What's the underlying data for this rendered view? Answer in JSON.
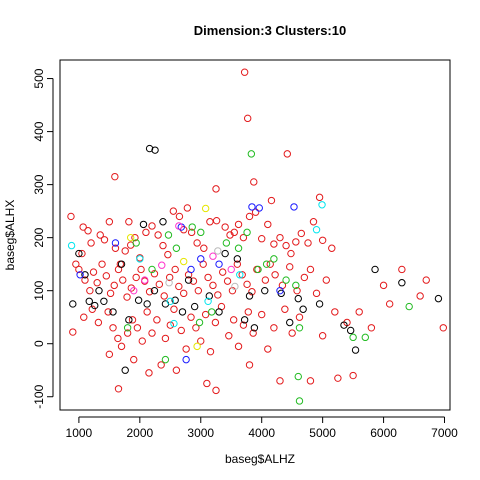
{
  "chart_data": {
    "type": "scatter",
    "title": "Dimension:3 Clusters:10",
    "xlabel": "baseg$ALHZ",
    "ylabel": "baseg$ALHX",
    "xlim": [
      690,
      7090
    ],
    "ylim": [
      -125,
      535
    ],
    "xticks": [
      1000,
      2000,
      3000,
      4000,
      5000,
      6000,
      7000
    ],
    "xtick_labels": [
      "1000",
      "2000",
      "3000",
      "4000",
      "5000",
      "6000",
      "7000"
    ],
    "yticks": [
      -100,
      0,
      100,
      200,
      300,
      400,
      500
    ],
    "ytick_labels": [
      "-100",
      "0",
      "100",
      "200",
      "300",
      "400",
      "500"
    ],
    "grid": false,
    "legend": "none",
    "marker": "open-circle",
    "series": [
      {
        "color": "#e31a1c",
        "points": [
          [
            3720,
            512
          ],
          [
            1590,
            315
          ],
          [
            3770,
            425
          ],
          [
            4420,
            358
          ],
          [
            3250,
            292
          ],
          [
            3870,
            305
          ],
          [
            4950,
            276
          ],
          [
            4160,
            270
          ],
          [
            2780,
            256
          ],
          [
            1820,
            230
          ],
          [
            870,
            240
          ],
          [
            1070,
            220
          ],
          [
            1150,
            213
          ],
          [
            1200,
            190
          ],
          [
            1350,
            205
          ],
          [
            1420,
            196
          ],
          [
            1500,
            230
          ],
          [
            1600,
            180
          ],
          [
            1680,
            150
          ],
          [
            1760,
            175
          ],
          [
            1850,
            186
          ],
          [
            1920,
            200
          ],
          [
            2000,
            162
          ],
          [
            2100,
            210
          ],
          [
            2200,
            222
          ],
          [
            2300,
            205
          ],
          [
            2380,
            185
          ],
          [
            2460,
            168
          ],
          [
            2550,
            250
          ],
          [
            2650,
            240
          ],
          [
            2720,
            215
          ],
          [
            2850,
            210
          ],
          [
            2940,
            190
          ],
          [
            3050,
            180
          ],
          [
            3150,
            230
          ],
          [
            3260,
            232
          ],
          [
            3400,
            220
          ],
          [
            3480,
            205
          ],
          [
            3550,
            210
          ],
          [
            3620,
            225
          ],
          [
            3700,
            200
          ],
          [
            3800,
            240
          ],
          [
            3900,
            248
          ],
          [
            4000,
            198
          ],
          [
            4100,
            225
          ],
          [
            4200,
            188
          ],
          [
            4300,
            200
          ],
          [
            4400,
            185
          ],
          [
            4480,
            170
          ],
          [
            4560,
            192
          ],
          [
            4650,
            208
          ],
          [
            4760,
            190
          ],
          [
            4850,
            230
          ],
          [
            5000,
            195
          ],
          [
            5150,
            180
          ],
          [
            950,
            150
          ],
          [
            1000,
            140
          ],
          [
            1050,
            170
          ],
          [
            1100,
            120
          ],
          [
            1180,
            100
          ],
          [
            1240,
            135
          ],
          [
            1300,
            115
          ],
          [
            1380,
            150
          ],
          [
            1450,
            128
          ],
          [
            1520,
            95
          ],
          [
            1580,
            110
          ],
          [
            1650,
            140
          ],
          [
            1720,
            120
          ],
          [
            1790,
            88
          ],
          [
            1860,
            105
          ],
          [
            1940,
            125
          ],
          [
            2020,
            140
          ],
          [
            2080,
            118
          ],
          [
            2160,
            98
          ],
          [
            2240,
            132
          ],
          [
            2320,
            112
          ],
          [
            2400,
            90
          ],
          [
            2490,
            125
          ],
          [
            2580,
            140
          ],
          [
            2640,
            108
          ],
          [
            2720,
            95
          ],
          [
            2800,
            130
          ],
          [
            2880,
            118
          ],
          [
            2960,
            100
          ],
          [
            3040,
            150
          ],
          [
            3120,
            125
          ],
          [
            3200,
            110
          ],
          [
            3280,
            92
          ],
          [
            3360,
            135
          ],
          [
            3440,
            118
          ],
          [
            3520,
            100
          ],
          [
            3600,
            150
          ],
          [
            3680,
            130
          ],
          [
            3760,
            112
          ],
          [
            3840,
            98
          ],
          [
            3920,
            140
          ],
          [
            4060,
            120
          ],
          [
            4140,
            150
          ],
          [
            4220,
            130
          ],
          [
            4340,
            110
          ],
          [
            4460,
            145
          ],
          [
            4580,
            100
          ],
          [
            4700,
            125
          ],
          [
            4800,
            140
          ],
          [
            4900,
            95
          ],
          [
            5060,
            120
          ],
          [
            5200,
            60
          ],
          [
            5400,
            40
          ],
          [
            5600,
            60
          ],
          [
            5800,
            30
          ],
          [
            6000,
            110
          ],
          [
            6100,
            75
          ],
          [
            6300,
            140
          ],
          [
            6600,
            90
          ],
          [
            6700,
            120
          ],
          [
            6980,
            30
          ],
          [
            900,
            22
          ],
          [
            1080,
            50
          ],
          [
            1220,
            65
          ],
          [
            1320,
            40
          ],
          [
            1480,
            60
          ],
          [
            1560,
            30
          ],
          [
            1640,
            10
          ],
          [
            1700,
            -5
          ],
          [
            1800,
            20
          ],
          [
            1880,
            45
          ],
          [
            1960,
            30
          ],
          [
            2040,
            5
          ],
          [
            2120,
            60
          ],
          [
            2200,
            20
          ],
          [
            2280,
            45
          ],
          [
            2420,
            10
          ],
          [
            2500,
            35
          ],
          [
            2560,
            65
          ],
          [
            2680,
            25
          ],
          [
            2760,
            -10
          ],
          [
            2840,
            50
          ],
          [
            2920,
            30
          ],
          [
            3000,
            5
          ],
          [
            3080,
            55
          ],
          [
            3160,
            -15
          ],
          [
            3240,
            40
          ],
          [
            3340,
            70
          ],
          [
            3460,
            15
          ],
          [
            3540,
            45
          ],
          [
            3620,
            -5
          ],
          [
            3700,
            35
          ],
          [
            3780,
            60
          ],
          [
            3860,
            20
          ],
          [
            4000,
            55
          ],
          [
            4100,
            -10
          ],
          [
            4200,
            30
          ],
          [
            4380,
            65
          ],
          [
            4500,
            20
          ],
          [
            4620,
            50
          ],
          [
            4800,
            -70
          ],
          [
            5000,
            15
          ],
          [
            5250,
            -65
          ],
          [
            5500,
            -60
          ],
          [
            1650,
            -85
          ],
          [
            1500,
            -20
          ],
          [
            1900,
            -30
          ],
          [
            2150,
            -55
          ],
          [
            2350,
            -40
          ],
          [
            2600,
            -50
          ],
          [
            3100,
            -75
          ],
          [
            3250,
            -88
          ],
          [
            3800,
            -40
          ],
          [
            4300,
            -70
          ]
        ]
      },
      {
        "color": "#000000",
        "points": [
          [
            2160,
            368
          ],
          [
            2250,
            365
          ],
          [
            2060,
            225
          ],
          [
            2380,
            230
          ],
          [
            1000,
            170
          ],
          [
            1100,
            130
          ],
          [
            1170,
            80
          ],
          [
            1260,
            72
          ],
          [
            1330,
            100
          ],
          [
            1410,
            80
          ],
          [
            1560,
            60
          ],
          [
            1700,
            150
          ],
          [
            1820,
            45
          ],
          [
            1980,
            82
          ],
          [
            2120,
            75
          ],
          [
            2240,
            100
          ],
          [
            2420,
            75
          ],
          [
            2580,
            82
          ],
          [
            2700,
            60
          ],
          [
            2900,
            70
          ],
          [
            3140,
            90
          ],
          [
            3300,
            60
          ],
          [
            3400,
            170
          ],
          [
            3600,
            160
          ],
          [
            3720,
            45
          ],
          [
            3800,
            90
          ],
          [
            3880,
            30
          ],
          [
            4050,
            100
          ],
          [
            4320,
            95
          ],
          [
            4460,
            40
          ],
          [
            4600,
            85
          ],
          [
            4680,
            65
          ],
          [
            4950,
            75
          ],
          [
            5350,
            35
          ],
          [
            5460,
            25
          ],
          [
            5540,
            -12
          ],
          [
            5860,
            140
          ],
          [
            6300,
            115
          ],
          [
            6900,
            85
          ],
          [
            1760,
            -50
          ],
          [
            900,
            75
          ],
          [
            2800,
            120
          ]
        ]
      },
      {
        "color": "#22bb22",
        "points": [
          [
            3830,
            358
          ],
          [
            2470,
            205
          ],
          [
            2600,
            180
          ],
          [
            2860,
            220
          ],
          [
            3000,
            210
          ],
          [
            3420,
            190
          ],
          [
            3620,
            180
          ],
          [
            3760,
            210
          ],
          [
            3940,
            140
          ],
          [
            4080,
            150
          ],
          [
            4200,
            160
          ],
          [
            4400,
            120
          ],
          [
            4560,
            110
          ],
          [
            4620,
            30
          ],
          [
            4600,
            -62
          ],
          [
            4620,
            -108
          ],
          [
            2420,
            -30
          ],
          [
            2980,
            40
          ],
          [
            3180,
            60
          ],
          [
            5500,
            12
          ],
          [
            5700,
            12
          ],
          [
            6420,
            70
          ],
          [
            1800,
            30
          ],
          [
            2200,
            140
          ],
          [
            1940,
            190
          ]
        ]
      },
      {
        "color": "#1a1aff",
        "points": [
          [
            3840,
            258
          ],
          [
            3960,
            256
          ],
          [
            4530,
            258
          ],
          [
            2680,
            220
          ],
          [
            1020,
            130
          ],
          [
            1600,
            190
          ],
          [
            2840,
            140
          ],
          [
            3000,
            160
          ],
          [
            3300,
            150
          ],
          [
            2760,
            -30
          ],
          [
            4300,
            100
          ]
        ]
      },
      {
        "color": "#00e5ee",
        "points": [
          [
            4900,
            215
          ],
          [
            4990,
            262
          ],
          [
            2560,
            38
          ],
          [
            2500,
            80
          ],
          [
            880,
            185
          ],
          [
            3120,
            80
          ],
          [
            2000,
            160
          ],
          [
            3640,
            130
          ]
        ]
      },
      {
        "color": "#ff33cc",
        "points": [
          [
            2640,
            222
          ],
          [
            2360,
            148
          ],
          [
            1900,
            100
          ],
          [
            3200,
            165
          ],
          [
            2080,
            120
          ],
          [
            3500,
            140
          ]
        ]
      },
      {
        "color": "#e6e600",
        "points": [
          [
            3080,
            255
          ],
          [
            2940,
            -5
          ],
          [
            1850,
            200
          ],
          [
            2720,
            155
          ]
        ]
      },
      {
        "color": "#bbbbbb",
        "points": [
          [
            3280,
            175
          ],
          [
            2480,
            115
          ],
          [
            3560,
            108
          ]
        ]
      }
    ]
  }
}
